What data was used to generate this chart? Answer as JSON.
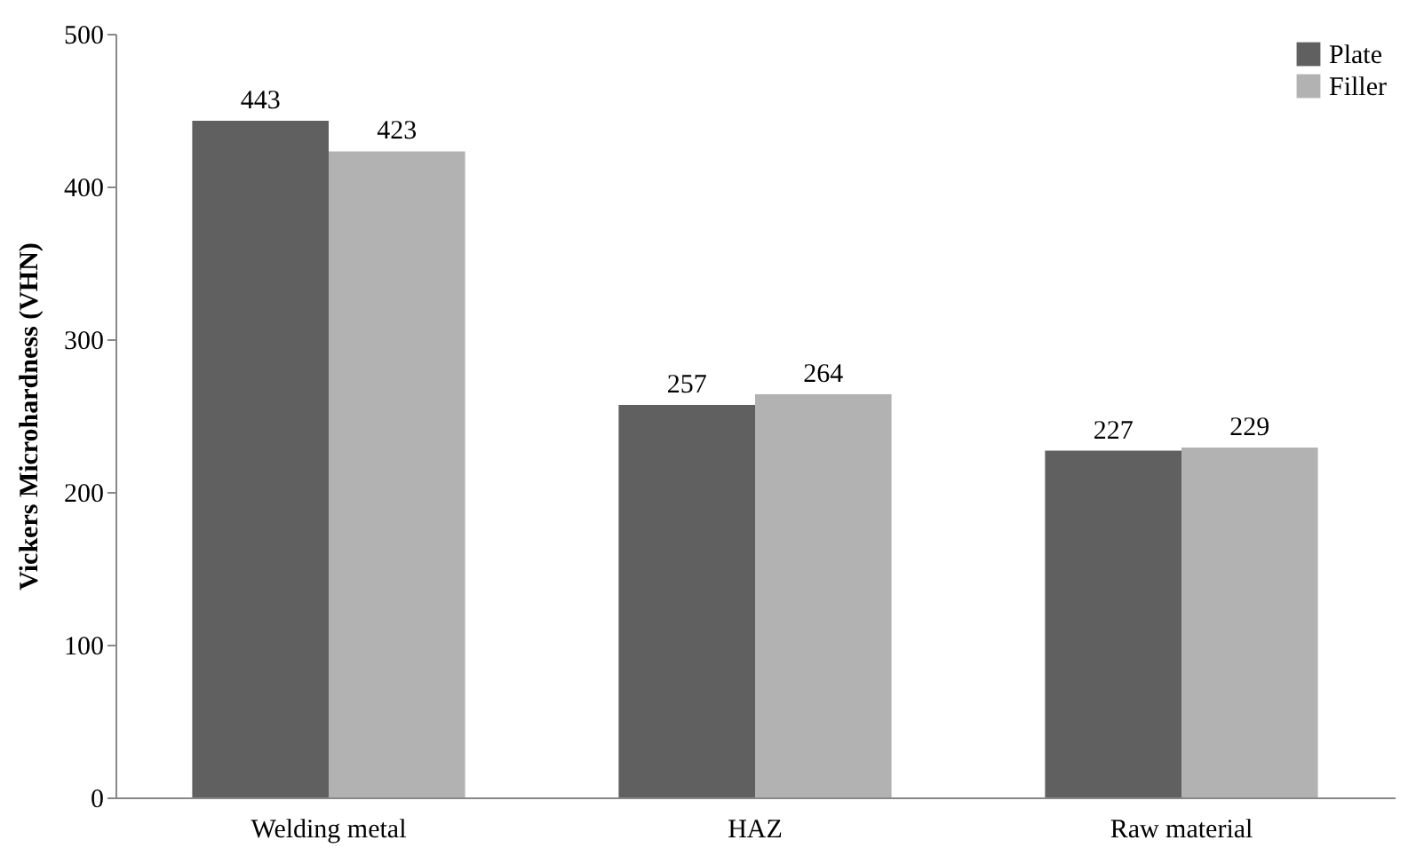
{
  "chart_data": {
    "type": "bar",
    "ylabel": "Vickers Microhardness (VHN)",
    "categories": [
      "Welding metal",
      "HAZ",
      "Raw material"
    ],
    "series": [
      {
        "name": "Plate",
        "color": "#606060",
        "values": [
          443,
          257,
          227
        ]
      },
      {
        "name": "Filler",
        "color": "#b2b2b2",
        "values": [
          423,
          264,
          229
        ]
      }
    ],
    "ylim": [
      0,
      500
    ],
    "yticks": [
      0,
      100,
      200,
      300,
      400,
      500
    ],
    "grid": false,
    "legend": "top right",
    "data_labels": true
  }
}
